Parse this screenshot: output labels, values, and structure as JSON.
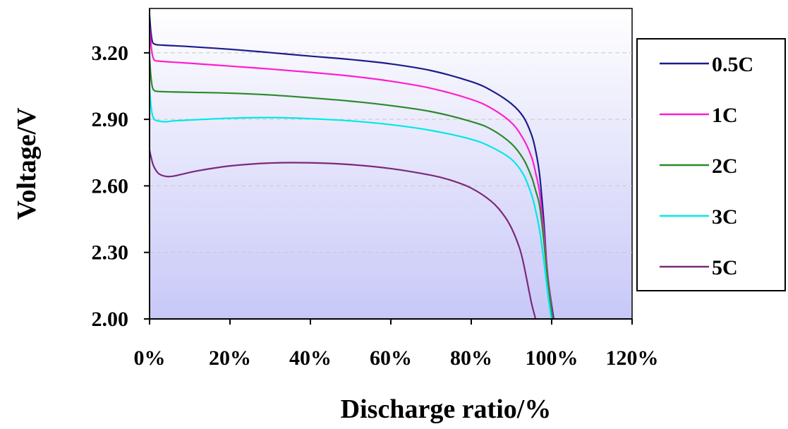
{
  "chart_data": {
    "type": "line",
    "title": "",
    "xlabel": "Discharge ratio/%",
    "ylabel": "Voltage/V",
    "xlim": [
      0,
      120
    ],
    "ylim": [
      2.0,
      3.4
    ],
    "x_ticks": [
      0,
      20,
      40,
      60,
      80,
      100,
      120
    ],
    "x_tick_labels": [
      "0%",
      "20%",
      "40%",
      "60%",
      "80%",
      "100%",
      "120%"
    ],
    "y_ticks": [
      2.0,
      2.3,
      2.6,
      2.9,
      3.2
    ],
    "y_tick_labels": [
      "2.00",
      "2.30",
      "2.60",
      "2.90",
      "3.20"
    ],
    "grid": "horizontal dashed at 2.60, 2.90, 3.20",
    "legend_position": "right",
    "plot_background": "gradient white (top) to lavender #c8c8f8 (bottom)",
    "series": [
      {
        "name": "0.5C",
        "color": "#1c1c8c",
        "x": [
          0,
          0.3,
          0.7,
          1.2,
          2,
          5,
          10,
          20,
          30,
          40,
          50,
          60,
          70,
          80,
          85,
          90,
          93,
          95,
          96,
          97,
          98,
          99,
          100.5
        ],
        "y": [
          3.37,
          3.3,
          3.25,
          3.24,
          3.236,
          3.233,
          3.228,
          3.216,
          3.201,
          3.185,
          3.17,
          3.15,
          3.12,
          3.07,
          3.03,
          2.97,
          2.91,
          2.83,
          2.76,
          2.65,
          2.45,
          2.2,
          2.0
        ]
      },
      {
        "name": "1C",
        "color": "#ff1ecf",
        "x": [
          0,
          0.3,
          0.7,
          1.2,
          2,
          5,
          10,
          20,
          30,
          40,
          50,
          60,
          70,
          80,
          85,
          90,
          93,
          95,
          96,
          97,
          98,
          99,
          100.3
        ],
        "y": [
          3.32,
          3.25,
          3.19,
          3.167,
          3.163,
          3.159,
          3.153,
          3.14,
          3.127,
          3.112,
          3.095,
          3.072,
          3.04,
          2.99,
          2.95,
          2.885,
          2.81,
          2.73,
          2.66,
          2.57,
          2.4,
          2.2,
          2.0
        ]
      },
      {
        "name": "2C",
        "color": "#2a8a2a",
        "x": [
          0,
          0.3,
          0.7,
          1.2,
          2,
          5,
          10,
          20,
          30,
          40,
          50,
          60,
          70,
          80,
          85,
          90,
          93,
          95,
          96,
          97,
          98,
          99,
          100.2
        ],
        "y": [
          3.18,
          3.1,
          3.045,
          3.03,
          3.026,
          3.024,
          3.022,
          3.018,
          3.01,
          2.997,
          2.982,
          2.962,
          2.935,
          2.89,
          2.855,
          2.79,
          2.72,
          2.64,
          2.58,
          2.51,
          2.36,
          2.18,
          2.0
        ]
      },
      {
        "name": "3C",
        "color": "#00e8e8",
        "x": [
          0,
          0.3,
          0.7,
          1.2,
          2,
          4,
          6,
          10,
          20,
          30,
          40,
          50,
          60,
          70,
          80,
          85,
          90,
          93,
          95,
          96,
          97,
          98,
          99,
          99.9
        ],
        "y": [
          3.04,
          2.97,
          2.92,
          2.9,
          2.893,
          2.889,
          2.893,
          2.897,
          2.905,
          2.908,
          2.903,
          2.893,
          2.876,
          2.85,
          2.81,
          2.775,
          2.72,
          2.65,
          2.56,
          2.49,
          2.4,
          2.27,
          2.12,
          2.0
        ]
      },
      {
        "name": "5C",
        "color": "#7a2a7a",
        "x": [
          0,
          0.5,
          1,
          2,
          3,
          4.5,
          6,
          8,
          12,
          20,
          30,
          40,
          50,
          60,
          70,
          75,
          80,
          85,
          88,
          90,
          92,
          93,
          94,
          95,
          96
        ],
        "y": [
          2.76,
          2.72,
          2.69,
          2.66,
          2.648,
          2.642,
          2.644,
          2.652,
          2.668,
          2.69,
          2.703,
          2.704,
          2.696,
          2.678,
          2.648,
          2.625,
          2.59,
          2.53,
          2.47,
          2.41,
          2.32,
          2.25,
          2.16,
          2.07,
          2.0
        ]
      }
    ]
  }
}
